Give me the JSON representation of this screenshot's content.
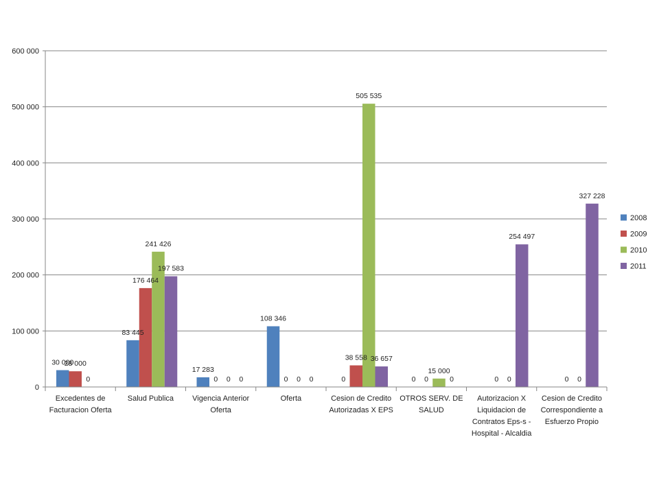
{
  "chart_data": {
    "type": "bar",
    "title": "",
    "xlabel": "",
    "ylabel": "",
    "ylim": [
      0,
      600000
    ],
    "yticks": [
      0,
      100000,
      200000,
      300000,
      400000,
      500000,
      600000
    ],
    "ytick_labels": [
      "0",
      "100 000",
      "200 000",
      "300 000",
      "400 000",
      "500 000",
      "600 000"
    ],
    "grid": true,
    "legend_position": "right",
    "categories": [
      [
        "Excedentes de",
        "Facturacion Oferta"
      ],
      [
        "Salud Publica"
      ],
      [
        "Vigencia Anterior",
        "Oferta"
      ],
      [
        "Oferta"
      ],
      [
        "Cesion de Credito",
        "Autorizadas X EPS"
      ],
      [
        "OTROS SERV. DE",
        "SALUD"
      ],
      [
        "Autorizacion X",
        "Liquidacion de",
        "Contratos Eps-s -",
        "Hospital - Alcaldia"
      ],
      [
        "Cesion de Credito",
        "Correspondiente a",
        "Esfuerzo Propio"
      ]
    ],
    "series": [
      {
        "name": "2008",
        "color": "#4f81bd",
        "values": [
          30000,
          83445,
          17283,
          108346,
          0,
          0,
          null,
          null
        ],
        "labels": [
          "30 000",
          "83 445",
          "17 283",
          "108 346",
          "0",
          "0",
          "",
          ""
        ]
      },
      {
        "name": "2009",
        "color": "#c0504d",
        "values": [
          28000,
          176464,
          0,
          0,
          38558,
          0,
          0,
          0
        ],
        "labels": [
          "28 000",
          "176 464",
          "0",
          "0",
          "38 558",
          "0",
          "0",
          "0"
        ]
      },
      {
        "name": "2010",
        "color": "#9bbb59",
        "values": [
          0,
          241426,
          0,
          0,
          505535,
          15000,
          0,
          0
        ],
        "labels": [
          "0",
          "241 426",
          "0",
          "0",
          "505 535",
          "15 000",
          "0",
          "0"
        ]
      },
      {
        "name": "2011",
        "color": "#8064a2",
        "values": [
          null,
          197583,
          0,
          0,
          36657,
          0,
          254497,
          327228
        ],
        "labels": [
          "",
          "197 583",
          "0",
          "0",
          "36 657",
          "0",
          "254 497",
          "327 228"
        ]
      }
    ]
  }
}
